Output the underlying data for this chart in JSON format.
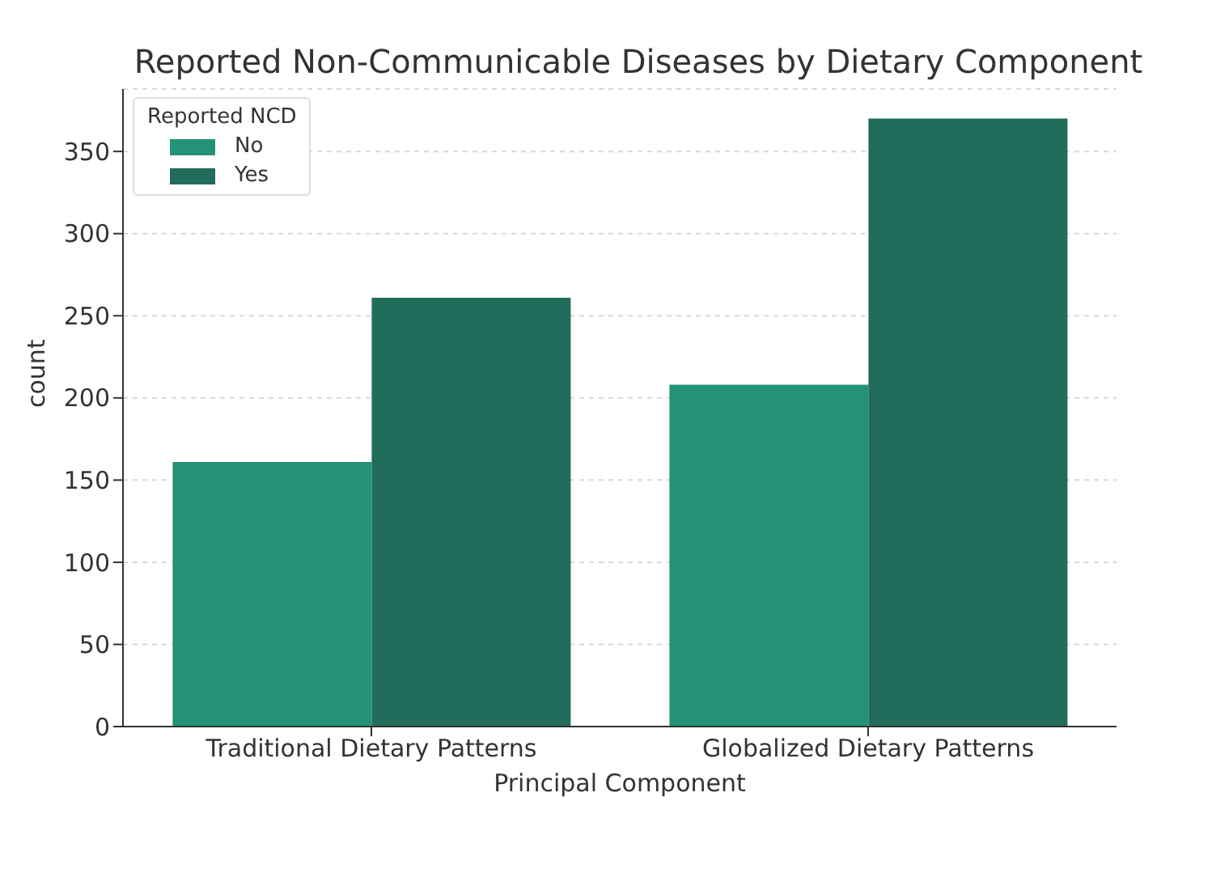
{
  "chart_data": {
    "type": "bar",
    "title": "Reported Non-Communicable Diseases by Dietary Component",
    "xlabel": "Principal Component",
    "ylabel": "count",
    "legend_title": "Reported NCD",
    "categories": [
      "Traditional Dietary Patterns",
      "Globalized Dietary Patterns"
    ],
    "series": [
      {
        "name": "No",
        "color": "#239276",
        "values": [
          161,
          208
        ]
      },
      {
        "name": "Yes",
        "color": "#226c5c",
        "values": [
          261,
          370
        ]
      }
    ],
    "ylim": [
      0,
      388
    ],
    "yticks": [
      0,
      50,
      100,
      150,
      200,
      250,
      300,
      350
    ],
    "grid": "y",
    "legend": "top left"
  }
}
